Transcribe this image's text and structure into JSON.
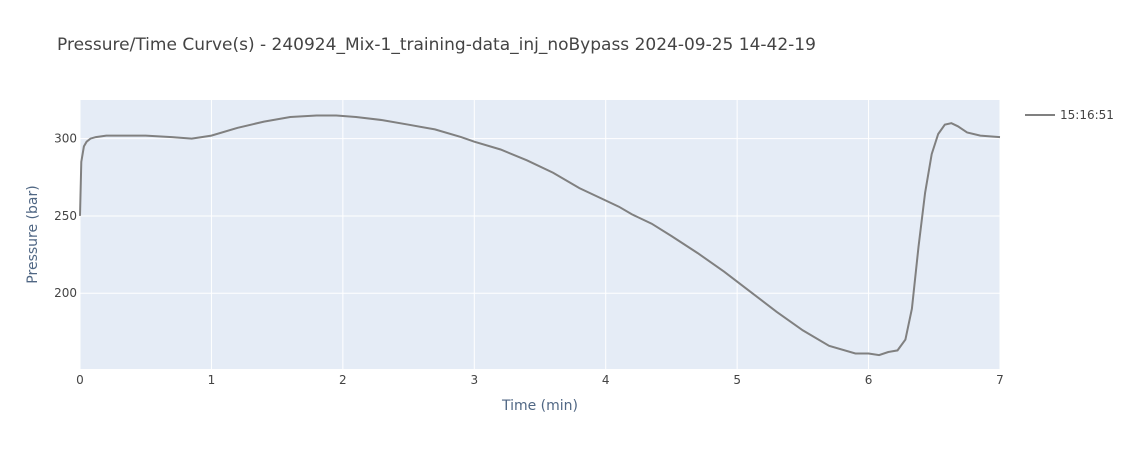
{
  "chart_data": {
    "type": "line",
    "title": "Pressure/Time Curve(s) - 240924_Mix-1_training-data_inj_noBypass 2024-09-25 14-42-19",
    "xlabel": "Time (min)",
    "ylabel": "Pressure (bar)",
    "xlim": [
      0,
      7
    ],
    "ylim": [
      151,
      325
    ],
    "x_ticks": [
      0,
      1,
      2,
      3,
      4,
      5,
      6,
      7
    ],
    "y_ticks": [
      200,
      250,
      300
    ],
    "grid": true,
    "legend_position": "top-right outside",
    "colors": {
      "plot_bg": "#e5ecf6",
      "line": "#808080",
      "grid": "#ffffff"
    },
    "series": [
      {
        "name": "15:16:51",
        "x": [
          0,
          0.01,
          0.03,
          0.05,
          0.08,
          0.12,
          0.2,
          0.3,
          0.5,
          0.7,
          0.85,
          1.0,
          1.2,
          1.4,
          1.6,
          1.8,
          1.95,
          2.1,
          2.3,
          2.5,
          2.7,
          2.9,
          3.0,
          3.2,
          3.4,
          3.6,
          3.8,
          4.0,
          4.1,
          4.2,
          4.35,
          4.5,
          4.7,
          4.9,
          5.1,
          5.3,
          5.5,
          5.7,
          5.9,
          6.0,
          6.08,
          6.15,
          6.22,
          6.28,
          6.33,
          6.38,
          6.43,
          6.48,
          6.53,
          6.58,
          6.63,
          6.68,
          6.75,
          6.85,
          7.0
        ],
        "y": [
          250,
          285,
          295,
          298,
          300,
          301,
          302,
          302,
          302,
          301,
          300,
          302,
          307,
          311,
          314,
          315,
          315,
          314,
          312,
          309,
          306,
          301,
          298,
          293,
          286,
          278,
          268,
          260,
          256,
          251,
          245,
          237,
          226,
          214,
          201,
          188,
          176,
          166,
          161,
          161,
          160,
          162,
          163,
          170,
          190,
          230,
          265,
          290,
          303,
          309,
          310,
          308,
          304,
          302,
          301
        ]
      }
    ]
  }
}
